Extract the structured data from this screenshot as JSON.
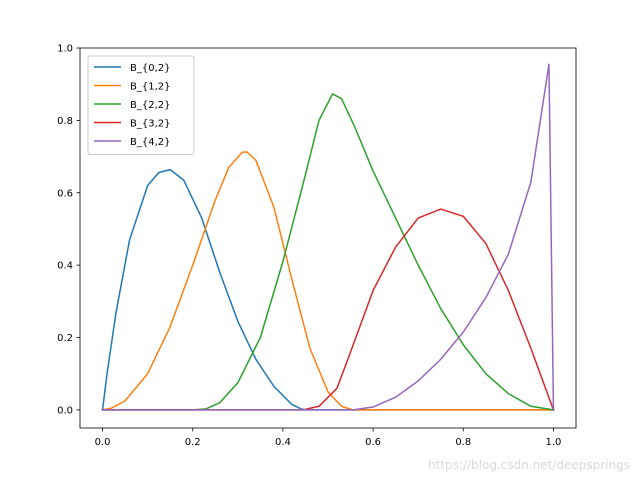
{
  "chart_data": {
    "type": "line",
    "title": "",
    "xlabel": "",
    "ylabel": "",
    "xlim": [
      -0.05,
      1.05
    ],
    "ylim": [
      -0.05,
      1.0
    ],
    "xticks": [
      "0.0",
      "0.2",
      "0.4",
      "0.6",
      "0.8",
      "1.0"
    ],
    "yticks": [
      "0.0",
      "0.2",
      "0.4",
      "0.6",
      "0.8",
      "1.0"
    ],
    "grid": false,
    "legend_position": "top-left",
    "series": [
      {
        "name": "B_{0,2}",
        "color": "#1f77b4",
        "x": [
          0.0,
          0.01,
          0.03,
          0.06,
          0.1,
          0.125,
          0.15,
          0.18,
          0.22,
          0.26,
          0.3,
          0.34,
          0.38,
          0.42,
          0.44,
          0.45,
          0.5,
          0.6,
          0.7,
          0.8,
          0.9,
          1.0
        ],
        "y": [
          0.0,
          0.1,
          0.27,
          0.47,
          0.62,
          0.656,
          0.664,
          0.635,
          0.53,
          0.38,
          0.245,
          0.14,
          0.065,
          0.015,
          0.003,
          0.0,
          0.0,
          0.0,
          0.0,
          0.0,
          0.0,
          0.0
        ]
      },
      {
        "name": "B_{1,2}",
        "color": "#ff7f0e",
        "x": [
          0.0,
          0.02,
          0.05,
          0.1,
          0.15,
          0.2,
          0.25,
          0.28,
          0.31,
          0.32,
          0.34,
          0.38,
          0.42,
          0.46,
          0.5,
          0.53,
          0.555,
          0.6,
          0.7,
          0.8,
          0.9,
          1.0
        ],
        "y": [
          0.0,
          0.005,
          0.025,
          0.1,
          0.23,
          0.4,
          0.58,
          0.67,
          0.712,
          0.713,
          0.69,
          0.56,
          0.36,
          0.17,
          0.05,
          0.01,
          0.0,
          0.0,
          0.0,
          0.0,
          0.0,
          0.0
        ]
      },
      {
        "name": "B_{2,2}",
        "color": "#2ca02c",
        "x": [
          0.0,
          0.1,
          0.2,
          0.23,
          0.26,
          0.3,
          0.35,
          0.4,
          0.45,
          0.48,
          0.51,
          0.53,
          0.56,
          0.6,
          0.65,
          0.7,
          0.75,
          0.8,
          0.85,
          0.9,
          0.95,
          1.0
        ],
        "y": [
          0.0,
          0.0,
          0.0,
          0.003,
          0.02,
          0.075,
          0.2,
          0.41,
          0.65,
          0.8,
          0.873,
          0.86,
          0.78,
          0.66,
          0.53,
          0.4,
          0.28,
          0.18,
          0.1,
          0.045,
          0.01,
          0.0
        ]
      },
      {
        "name": "B_{3,2}",
        "color": "#d62728",
        "x": [
          0.0,
          0.2,
          0.4,
          0.445,
          0.48,
          0.52,
          0.55,
          0.6,
          0.65,
          0.7,
          0.75,
          0.8,
          0.85,
          0.9,
          0.95,
          1.0
        ],
        "y": [
          0.0,
          0.0,
          0.0,
          0.0,
          0.01,
          0.06,
          0.16,
          0.33,
          0.45,
          0.53,
          0.555,
          0.535,
          0.46,
          0.33,
          0.17,
          0.0
        ]
      },
      {
        "name": "B_{4,2}",
        "color": "#9467bd",
        "x": [
          0.0,
          0.2,
          0.4,
          0.555,
          0.6,
          0.65,
          0.7,
          0.75,
          0.8,
          0.85,
          0.9,
          0.95,
          0.99,
          1.0
        ],
        "y": [
          0.0,
          0.0,
          0.0,
          0.0,
          0.008,
          0.035,
          0.08,
          0.14,
          0.215,
          0.31,
          0.43,
          0.63,
          0.955,
          0.0
        ]
      }
    ]
  },
  "watermark": "https://blog.csdn.net/deepsprings"
}
